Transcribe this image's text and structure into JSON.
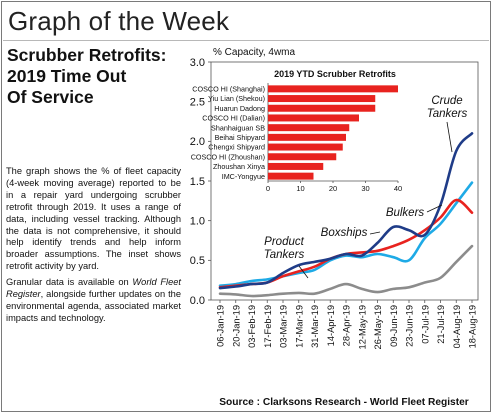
{
  "page": {
    "title": "Graph of the Week"
  },
  "article": {
    "headline_lines": [
      "Scrubber Retrofits:",
      "2019 Time Out",
      "Of Service"
    ],
    "paragraph1": "The graph shows the % of fleet capacity (4-week moving average) reported to be in a repair yard undergoing scrubber retrofit through 2019. It uses a range of data, including vessel tracking. Although the data is not comprehensive, it should help identify trends and help inform broader assumptions. The inset shows retrofit activity by yard.",
    "paragraph2_before": "Granular data is available on ",
    "paragraph2_em": "World Fleet Register",
    "paragraph2_after": ", alongside further updates on the environmental agenda, associated market impacts and technology."
  },
  "chart_data": [
    {
      "type": "line",
      "ylabel": "% Capacity, 4wma",
      "ylim": [
        0,
        3.0
      ],
      "yticks": [
        "0.0",
        "0.5",
        "1.0",
        "1.5",
        "2.0",
        "2.5",
        "3.0"
      ],
      "x": [
        "06-Jan-19",
        "20-Jan-19",
        "03-Feb-19",
        "17-Feb-19",
        "03-Mar-19",
        "17-Mar-19",
        "31-Mar-19",
        "14-Apr-19",
        "28-Apr-19",
        "12-May-19",
        "26-May-19",
        "09-Jun-19",
        "23-Jun-19",
        "07-Jul-19",
        "21-Jul-19",
        "04-Aug-19",
        "18-Aug-19"
      ],
      "grid": false,
      "series": [
        {
          "name": "Crude Tankers",
          "color": "#1f3c88",
          "values": [
            0.15,
            0.17,
            0.2,
            0.22,
            0.34,
            0.44,
            0.48,
            0.52,
            0.58,
            0.56,
            0.72,
            0.92,
            0.88,
            0.82,
            1.2,
            1.88,
            2.1
          ]
        },
        {
          "name": "Bulkers",
          "color": "#e8231f",
          "values": [
            0.16,
            0.18,
            0.2,
            0.22,
            0.3,
            0.36,
            0.42,
            0.52,
            0.58,
            0.6,
            0.62,
            0.68,
            0.76,
            0.88,
            1.04,
            1.26,
            1.1
          ]
        },
        {
          "name": "Boxships",
          "color": "#1eaae6",
          "values": [
            0.18,
            0.2,
            0.24,
            0.26,
            0.3,
            0.34,
            0.38,
            0.5,
            0.56,
            0.54,
            0.58,
            0.54,
            0.5,
            0.78,
            0.96,
            1.22,
            1.48
          ]
        },
        {
          "name": "Product Tankers",
          "color": "#8c8c8c",
          "values": [
            0.08,
            0.07,
            0.05,
            0.06,
            0.08,
            0.09,
            0.08,
            0.14,
            0.2,
            0.14,
            0.1,
            0.14,
            0.16,
            0.22,
            0.28,
            0.48,
            0.68
          ]
        }
      ],
      "annotations": [
        "Crude Tankers",
        "Bulkers",
        "Boxships",
        "Product Tankers"
      ]
    },
    {
      "type": "bar",
      "orientation": "horizontal",
      "title": "2019 YTD Scrubber Retrofits",
      "color": "#e8231f",
      "categories": [
        "COSCO HI (Shanghai)",
        "Yiu Lian (Shekou)",
        "Huarun Dadong",
        "COSCO HI (Dalian)",
        "Shanhaiguan SB",
        "Beihai Shipyard",
        "Chengxi Shipyard",
        "COSCO HI (Zhoushan)",
        "Zhoushan Xinya",
        "IMC-Yongyue"
      ],
      "values": [
        40,
        33,
        33,
        28,
        25,
        24,
        23,
        21,
        17,
        14
      ],
      "xlim": [
        0,
        40
      ],
      "xticks": [
        "0",
        "10",
        "20",
        "30",
        "40"
      ]
    }
  ],
  "footer": {
    "source": "Source : Clarksons Research - World Fleet Register"
  }
}
